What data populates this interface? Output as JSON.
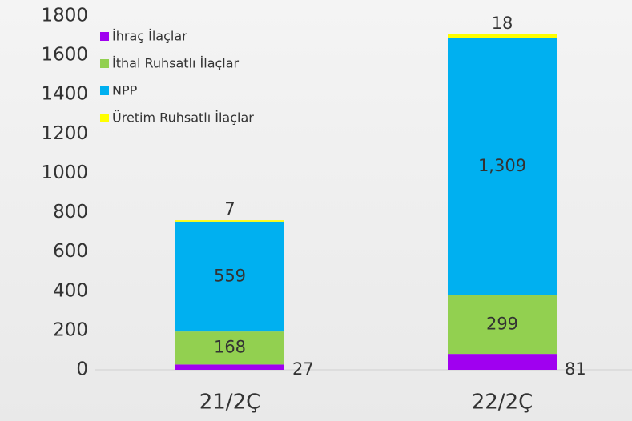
{
  "chart_data": {
    "type": "stacked_bar",
    "categories": [
      "21/2Ç",
      "22/2Ç"
    ],
    "series": [
      {
        "name": "İhraç İlaçlar",
        "color": "#a000f0",
        "values": [
          27,
          81
        ]
      },
      {
        "name": "İthal Ruhsatlı İlaçlar",
        "color": "#92d050",
        "values": [
          168,
          299
        ]
      },
      {
        "name": "NPP",
        "color": "#00b0f0",
        "values": [
          559,
          1309
        ],
        "value_labels": [
          "559",
          "1,309"
        ]
      },
      {
        "name": "Üretim Ruhsatlı İlaçlar",
        "color": "#ffff00",
        "values": [
          7,
          18
        ]
      }
    ],
    "ylim": [
      0,
      1800
    ],
    "yticks": [
      0,
      200,
      400,
      600,
      800,
      1000,
      1200,
      1400,
      1600,
      1800
    ],
    "legend": "upper left"
  }
}
